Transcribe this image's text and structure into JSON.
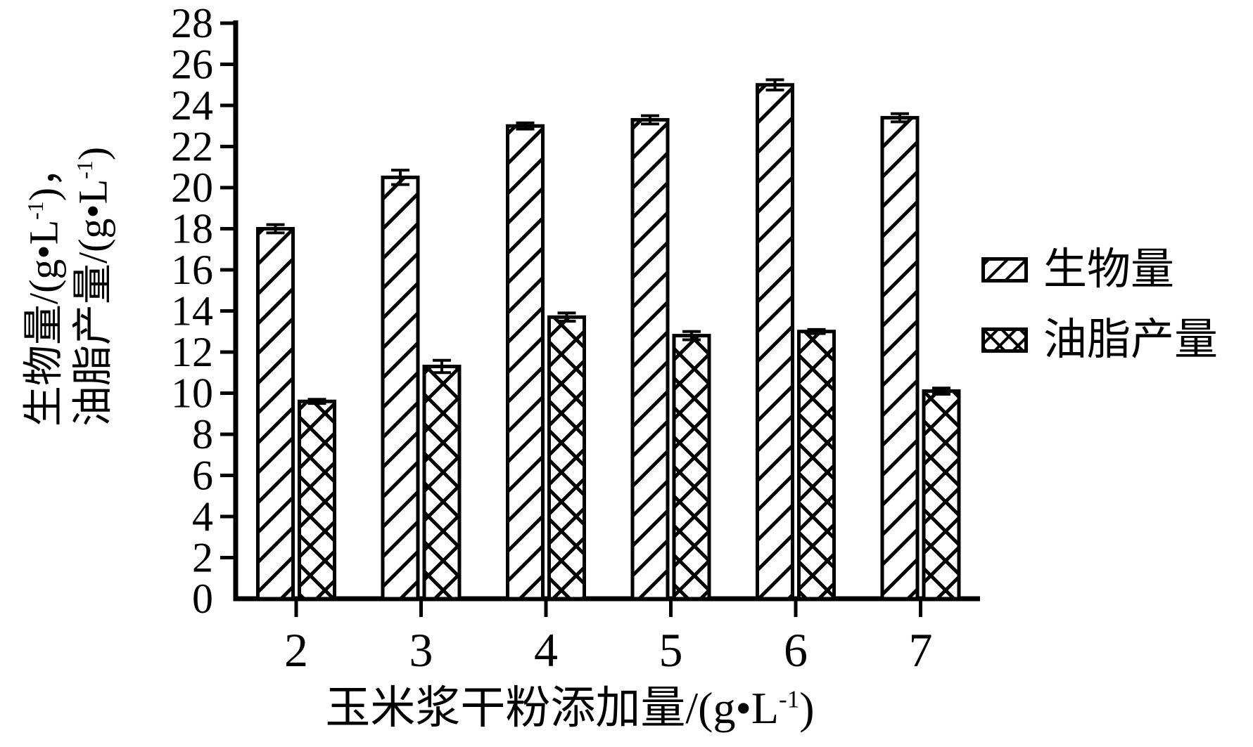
{
  "chart_data": {
    "type": "bar",
    "title": "",
    "categories": [
      "2",
      "3",
      "4",
      "5",
      "6",
      "7"
    ],
    "series": [
      {
        "name": "生物量",
        "pattern": "diagonal-hatch",
        "values": [
          18.0,
          20.5,
          23.0,
          23.3,
          25.0,
          23.4
        ],
        "errors": [
          0.2,
          0.35,
          0.15,
          0.2,
          0.25,
          0.2
        ]
      },
      {
        "name": "油脂产量",
        "pattern": "crosshatch",
        "values": [
          9.6,
          11.3,
          13.7,
          12.8,
          13.0,
          10.1
        ],
        "errors": [
          0.1,
          0.3,
          0.2,
          0.2,
          0.1,
          0.15
        ]
      }
    ],
    "y_axis": {
      "min": 0,
      "max": 28,
      "tick_step": 2,
      "ticks": [
        0,
        2,
        4,
        6,
        8,
        10,
        12,
        14,
        16,
        18,
        20,
        22,
        24,
        26,
        28
      ],
      "label_line1": {
        "pre": "生物量/(g•L",
        "sup": "-1",
        "post": ")，"
      },
      "label_line2": {
        "pre": "油脂产量/(g•L",
        "sup": "-1",
        "post": ")"
      }
    },
    "x_axis": {
      "title": {
        "pre": "玉米浆干粉添加量/(g•L",
        "sup": "-1",
        "post": ")"
      }
    },
    "legend_position": "right",
    "grid": false,
    "error_bars": true,
    "colors": {
      "ink": "#000000",
      "bar_fill": "#ffffff",
      "background": "#ffffff"
    }
  }
}
